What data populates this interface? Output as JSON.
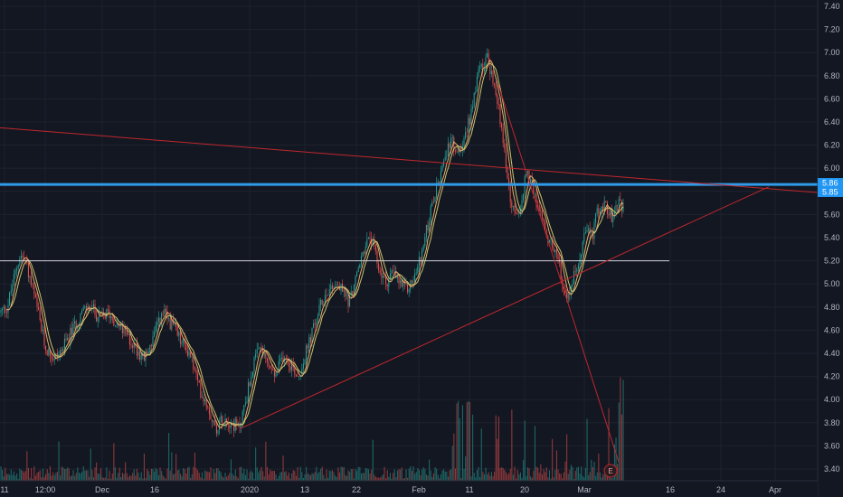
{
  "chart_data": {
    "type": "candlestick",
    "y_axis": {
      "ticks": [
        "7.40",
        "7.20",
        "7.00",
        "6.80",
        "6.60",
        "6.40",
        "6.20",
        "6.00",
        "5.80",
        "5.60",
        "5.40",
        "5.20",
        "5.00",
        "4.80",
        "4.60",
        "4.40",
        "4.20",
        "4.00",
        "3.80",
        "3.60",
        "3.40"
      ],
      "ylim": [
        3.35,
        7.45
      ],
      "position": "right"
    },
    "x_axis": {
      "labels": [
        "11",
        "12:00",
        "Dec",
        "16",
        "2020",
        "13",
        "22",
        "Feb",
        "11",
        "20",
        "Mar",
        "16",
        "24",
        "Apr"
      ]
    },
    "price_tags": [
      {
        "value": "5.86",
        "color": "#2196f3"
      },
      {
        "value": "5.85",
        "color": "#2196f3"
      }
    ],
    "horizontal_lines": [
      {
        "value": 5.86,
        "color": "#2f9be9",
        "name": "blue-level"
      },
      {
        "value": 5.2,
        "color": "#d1d4dc",
        "name": "white-level"
      }
    ],
    "trend_lines": [
      {
        "points": [
          [
            "start",
            6.35
          ],
          [
            "end",
            5.78
          ]
        ],
        "color": "#c0272d"
      },
      {
        "points": [
          [
            "Jan-03",
            3.75
          ],
          [
            "Mar-27",
            5.85
          ]
        ],
        "color": "#c0272d"
      },
      {
        "points": [
          [
            "Feb-15",
            6.75
          ],
          [
            "Mar-09",
            3.45
          ]
        ],
        "color": "#c0272d"
      }
    ],
    "price_path": [
      [
        0,
        4.75
      ],
      [
        8,
        4.8
      ],
      [
        14,
        5.0
      ],
      [
        22,
        5.25
      ],
      [
        28,
        5.2
      ],
      [
        36,
        4.95
      ],
      [
        42,
        4.75
      ],
      [
        50,
        4.45
      ],
      [
        60,
        4.35
      ],
      [
        70,
        4.45
      ],
      [
        80,
        4.6
      ],
      [
        90,
        4.75
      ],
      [
        100,
        4.8
      ],
      [
        110,
        4.7
      ],
      [
        120,
        4.75
      ],
      [
        130,
        4.65
      ],
      [
        140,
        4.55
      ],
      [
        150,
        4.45
      ],
      [
        160,
        4.35
      ],
      [
        170,
        4.55
      ],
      [
        180,
        4.75
      ],
      [
        190,
        4.65
      ],
      [
        200,
        4.5
      ],
      [
        210,
        4.4
      ],
      [
        220,
        4.1
      ],
      [
        230,
        3.95
      ],
      [
        238,
        3.75
      ],
      [
        248,
        3.85
      ],
      [
        256,
        3.8
      ],
      [
        264,
        3.75
      ],
      [
        272,
        4.0
      ],
      [
        280,
        4.3
      ],
      [
        288,
        4.45
      ],
      [
        296,
        4.3
      ],
      [
        304,
        4.2
      ],
      [
        314,
        4.4
      ],
      [
        322,
        4.3
      ],
      [
        330,
        4.2
      ],
      [
        338,
        4.4
      ],
      [
        346,
        4.6
      ],
      [
        354,
        4.8
      ],
      [
        362,
        4.95
      ],
      [
        370,
        5.0
      ],
      [
        378,
        4.95
      ],
      [
        386,
        4.85
      ],
      [
        394,
        5.05
      ],
      [
        402,
        5.3
      ],
      [
        410,
        5.4
      ],
      [
        418,
        5.15
      ],
      [
        426,
        5.0
      ],
      [
        434,
        5.1
      ],
      [
        442,
        5.0
      ],
      [
        450,
        4.95
      ],
      [
        458,
        5.05
      ],
      [
        466,
        5.25
      ],
      [
        474,
        5.55
      ],
      [
        482,
        5.8
      ],
      [
        490,
        6.0
      ],
      [
        498,
        6.25
      ],
      [
        506,
        6.1
      ],
      [
        514,
        6.3
      ],
      [
        522,
        6.5
      ],
      [
        530,
        6.85
      ],
      [
        538,
        6.95
      ],
      [
        546,
        6.75
      ],
      [
        552,
        6.5
      ],
      [
        558,
        6.15
      ],
      [
        564,
        5.75
      ],
      [
        570,
        5.55
      ],
      [
        576,
        5.7
      ],
      [
        582,
        5.95
      ],
      [
        588,
        5.85
      ],
      [
        594,
        5.7
      ],
      [
        600,
        5.55
      ],
      [
        606,
        5.4
      ],
      [
        612,
        5.3
      ],
      [
        618,
        5.15
      ],
      [
        624,
        4.95
      ],
      [
        630,
        4.9
      ],
      [
        636,
        5.1
      ],
      [
        642,
        5.3
      ],
      [
        648,
        5.45
      ],
      [
        654,
        5.4
      ],
      [
        660,
        5.6
      ],
      [
        666,
        5.7
      ],
      [
        672,
        5.65
      ],
      [
        678,
        5.55
      ],
      [
        684,
        5.7
      ],
      [
        690,
        5.65
      ]
    ],
    "volume_bars": "many",
    "earnings_marker": {
      "label": "E"
    },
    "background": "#131722",
    "grid": true
  }
}
